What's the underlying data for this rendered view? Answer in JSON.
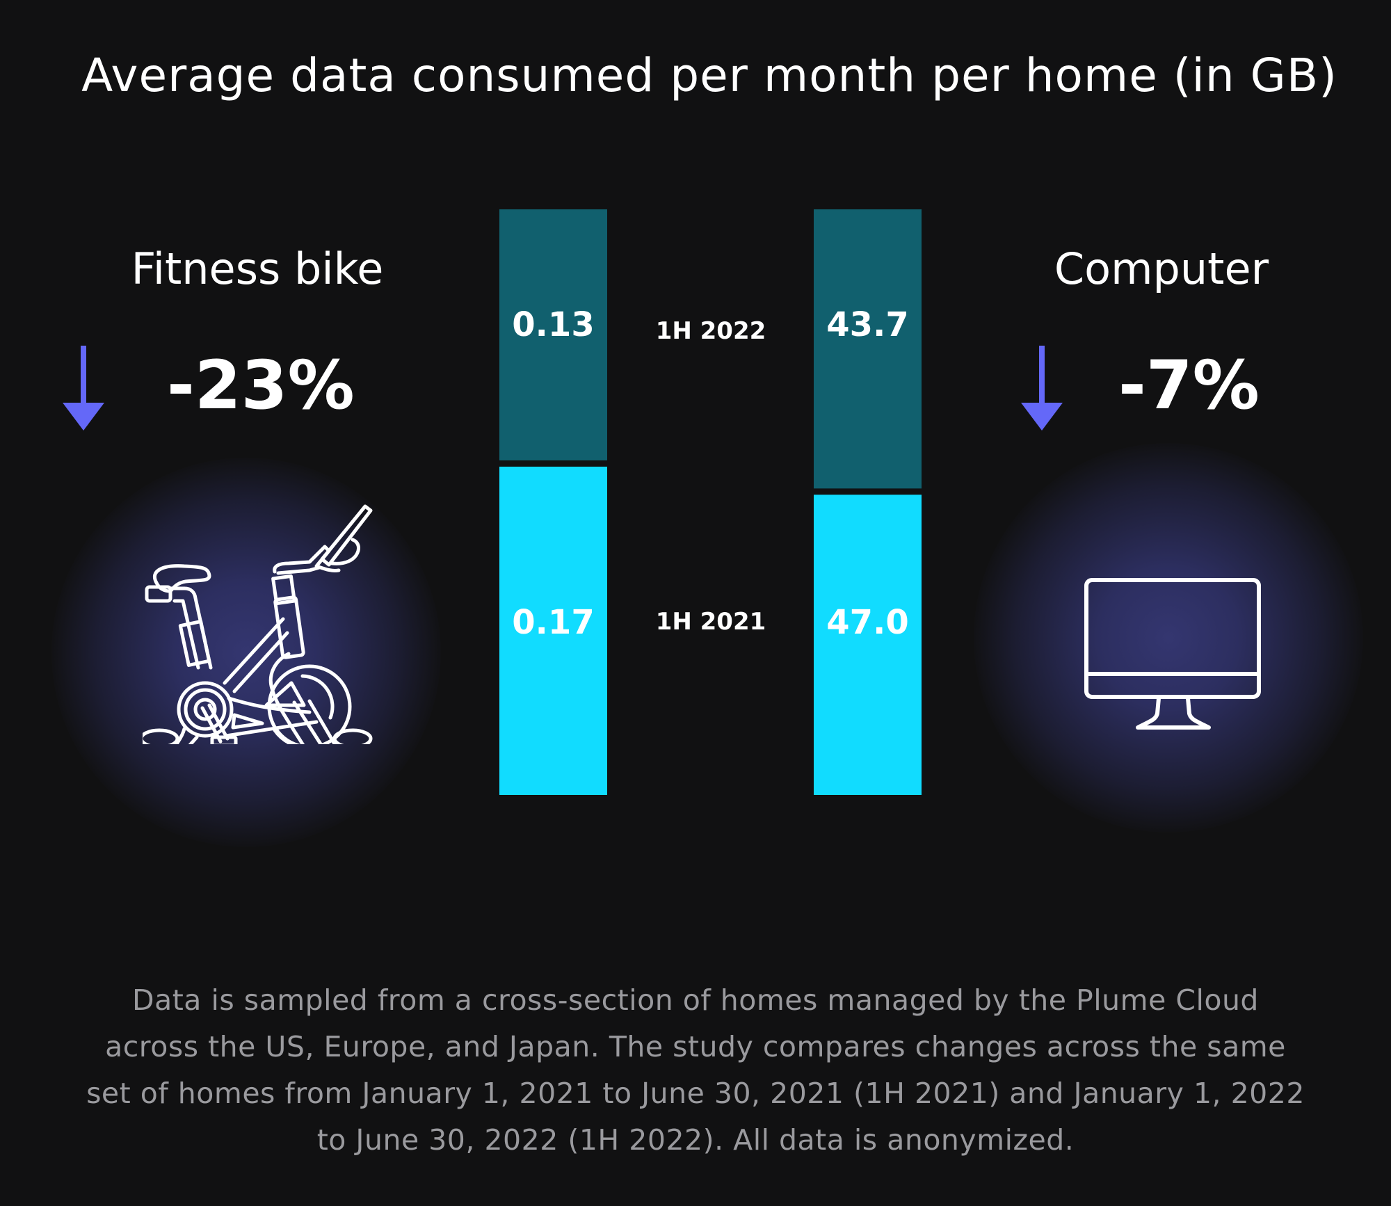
{
  "title": "Average data consumed per month per home (in GB)",
  "colors": {
    "background": "#111112",
    "bar_1h2022": "#11606e",
    "bar_1h2021": "#11dcff",
    "arrow": "#6468f8",
    "glow": "#343670",
    "footnote": "#9a9a9e"
  },
  "devices": [
    {
      "name": "Fitness bike",
      "change": "-23%",
      "direction": "down",
      "icon": "fitness-bike-icon"
    },
    {
      "name": "Computer",
      "change": "-7%",
      "direction": "down",
      "icon": "computer-monitor-icon"
    }
  ],
  "chart_data": {
    "type": "bar",
    "stacked": true,
    "title": "Average data consumed per month per home (in GB)",
    "categories": [
      "Fitness bike",
      "Computer"
    ],
    "series": [
      {
        "name": "1H 2022",
        "values": [
          0.13,
          43.7
        ],
        "labels": [
          "0.13",
          "43.7"
        ],
        "color": "#11606e",
        "position": "top"
      },
      {
        "name": "1H 2021",
        "values": [
          0.17,
          47.0
        ],
        "labels": [
          "0.17",
          "47.0"
        ],
        "color": "#11dcff",
        "position": "bottom"
      }
    ],
    "normalized": "each bar scaled to full height; segments proportional to period share",
    "xlabel": "",
    "ylabel": "",
    "grid": false,
    "legend": "between-bars"
  },
  "period_labels": [
    "1H 2022",
    "1H 2021"
  ],
  "footnote": [
    "Data is sampled from a cross-section of homes managed by the Plume Cloud",
    "across the US, Europe, and Japan. The study compares changes across the same",
    "set of homes from January 1, 2021 to June 30, 2021 (1H 2021) and January 1, 2022",
    "to June 30, 2022 (1H 2022). All data is anonymized."
  ]
}
